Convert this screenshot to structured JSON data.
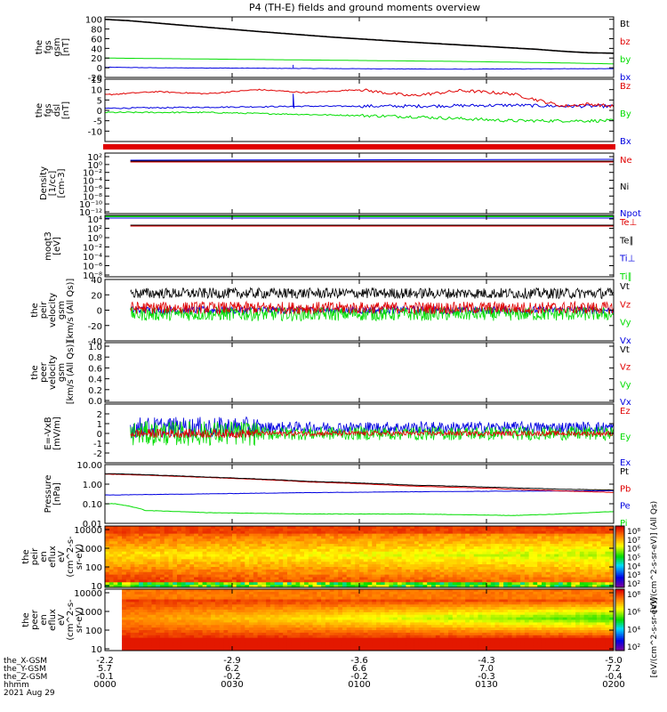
{
  "title": "P4 (TH-E) fields and ground moments overview",
  "colors": {
    "black": "#000000",
    "red": "#e00000",
    "green": "#00dd00",
    "blue": "#0000e0"
  },
  "chart_data": [
    {
      "id": "fgs_gsm",
      "type": "line",
      "ylabel": [
        "the",
        "fgs",
        "gsm",
        "[nT]"
      ],
      "ylim": [
        -20,
        105
      ],
      "y_ticks": [
        "100",
        "80",
        "60",
        "40",
        "20",
        "0",
        "-20"
      ],
      "y_tick_values": [
        100,
        80,
        60,
        40,
        20,
        0,
        -20
      ],
      "series": [
        {
          "name": "Bt",
          "color": "black",
          "x": [
            0,
            0.05,
            0.15,
            0.3,
            0.45,
            0.6,
            0.75,
            0.85,
            0.9,
            0.95,
            1.0
          ],
          "values": [
            100,
            97,
            88,
            75,
            63,
            53,
            44,
            38,
            34,
            31,
            30
          ]
        },
        {
          "name": "bz",
          "color": "red",
          "x": [
            0,
            0.05,
            0.15,
            0.3,
            0.45,
            0.6,
            0.75,
            0.85,
            0.9,
            0.95,
            1.0
          ],
          "values": [
            100,
            97,
            88,
            75,
            63,
            53,
            44,
            38,
            34,
            31,
            30
          ]
        },
        {
          "name": "by",
          "color": "green",
          "x": [
            0,
            0.1,
            0.3,
            0.5,
            0.7,
            0.9,
            1.0
          ],
          "values": [
            20,
            19,
            17,
            15,
            13,
            10,
            8
          ]
        },
        {
          "name": "bx",
          "color": "blue",
          "x": [
            0,
            0.1,
            0.3,
            0.5,
            0.7,
            0.9,
            1.0
          ],
          "values": [
            1,
            0,
            -1,
            -2,
            -3,
            -2,
            -2
          ]
        }
      ]
    },
    {
      "id": "fgs_dsl",
      "type": "line",
      "ylabel": [
        "the",
        "fgs",
        "dsl",
        "[nT]"
      ],
      "ylim": [
        -15,
        15
      ],
      "y_ticks": [
        "15",
        "10",
        "5",
        "0",
        "-5",
        "-10"
      ],
      "y_tick_values": [
        15,
        10,
        5,
        0,
        -5,
        -10
      ],
      "series": [
        {
          "name": "Bz",
          "color": "red",
          "x": [
            0,
            0.1,
            0.2,
            0.3,
            0.4,
            0.5,
            0.6,
            0.7,
            0.8,
            0.85,
            0.9,
            0.95,
            1.0
          ],
          "values": [
            7.5,
            9,
            8,
            10,
            8.5,
            10,
            7,
            9.5,
            8,
            5,
            2,
            3,
            2
          ]
        },
        {
          "name": "By",
          "color": "green",
          "x": [
            0,
            0.2,
            0.4,
            0.6,
            0.8,
            1.0
          ],
          "values": [
            -1,
            -1,
            -2,
            -3,
            -5,
            -5
          ]
        },
        {
          "name": "Bx",
          "color": "blue",
          "x": [
            0,
            0.2,
            0.4,
            0.6,
            0.8,
            0.9,
            1.0
          ],
          "values": [
            1,
            1.5,
            2,
            2,
            2.5,
            2,
            2
          ]
        }
      ]
    },
    {
      "id": "density",
      "type": "line",
      "ylabel": [
        "Density",
        "[1/cc]",
        "[cm-3]"
      ],
      "y_ticks": [
        "10²",
        "10⁰",
        "10⁻²",
        "10⁻⁴",
        "10⁻⁶",
        "10⁻⁸",
        "10⁻¹⁰",
        "10⁻¹²"
      ],
      "series": [
        {
          "name": "Ne",
          "color": "red"
        },
        {
          "name": "Ni",
          "color": "black"
        },
        {
          "name": "Npot",
          "color": "blue"
        }
      ]
    },
    {
      "id": "temperature",
      "type": "line",
      "ylabel": [
        "moqt3",
        "[eV]"
      ],
      "y_ticks": [
        "10⁴",
        "10²",
        "10⁰",
        "10⁻²",
        "10⁻⁴",
        "10⁻⁶",
        "10⁻⁸"
      ],
      "series": [
        {
          "name": "Te⊥",
          "color": "red"
        },
        {
          "name": "Te∥",
          "color": "black"
        },
        {
          "name": "Ti⊥",
          "color": "blue"
        },
        {
          "name": "Ti∥",
          "color": "green"
        }
      ]
    },
    {
      "id": "peir_velocity",
      "type": "line",
      "ylabel": [
        "the",
        "peir",
        "velocity",
        "gsm",
        "[km/s (All Qs)]"
      ],
      "ylim": [
        -40,
        40
      ],
      "y_ticks": [
        "40",
        "20",
        "0",
        "-20",
        "-40"
      ],
      "y_tick_values": [
        40,
        20,
        0,
        -20,
        -40
      ],
      "series": [
        {
          "name": "Vt",
          "color": "black",
          "mean": 22
        },
        {
          "name": "Vz",
          "color": "red",
          "mean": 3
        },
        {
          "name": "Vy",
          "color": "green",
          "mean": -5
        },
        {
          "name": "Vx",
          "color": "blue",
          "mean": 0
        }
      ]
    },
    {
      "id": "peer_velocity",
      "type": "line",
      "ylabel": [
        "the",
        "peer",
        "velocity",
        "gsm",
        "[km/s (All Qs)]"
      ],
      "y_ticks": [
        "1.0",
        "0.8",
        "0.6",
        "0.4",
        "0.2",
        "0.0"
      ],
      "series": [
        {
          "name": "Vt",
          "color": "black"
        },
        {
          "name": "Vz",
          "color": "red"
        },
        {
          "name": "Vy",
          "color": "green"
        },
        {
          "name": "Vx",
          "color": "blue"
        }
      ]
    },
    {
      "id": "efield",
      "type": "line",
      "ylabel": [
        "E=-VxB",
        "[mV/m]"
      ],
      "ylim": [
        -3,
        3
      ],
      "y_ticks": [
        "2",
        "1",
        "0",
        "-1",
        "-2"
      ],
      "y_tick_values": [
        2,
        1,
        0,
        -1,
        -2
      ],
      "series": [
        {
          "name": "Ez",
          "color": "red",
          "mean": 0
        },
        {
          "name": "Ey",
          "color": "green",
          "mean": 0
        },
        {
          "name": "Ex",
          "color": "blue",
          "mean": 0.6
        }
      ]
    },
    {
      "id": "pressure",
      "type": "line",
      "log_y": true,
      "ylabel": [
        "Pressure",
        "[nPa]"
      ],
      "ylim": [
        0.01,
        10
      ],
      "y_ticks": [
        "10.00",
        "1.00",
        "0.10",
        "0.01"
      ],
      "y_tick_values": [
        10,
        1,
        0.1,
        0.01
      ],
      "series": [
        {
          "name": "Pt",
          "color": "black",
          "x": [
            0.02,
            0.2,
            0.4,
            0.6,
            0.8,
            0.9,
            1.0
          ],
          "values": [
            3.4,
            2.3,
            1.4,
            0.9,
            0.65,
            0.55,
            0.5
          ]
        },
        {
          "name": "Pb",
          "color": "red",
          "x": [
            0.02,
            0.2,
            0.4,
            0.6,
            0.8,
            0.9,
            1.0
          ],
          "values": [
            3.2,
            2.2,
            1.3,
            0.8,
            0.55,
            0.45,
            0.38
          ]
        },
        {
          "name": "Pe",
          "color": "blue",
          "x": [
            0.02,
            0.2,
            0.4,
            0.6,
            0.8,
            1.0
          ],
          "values": [
            0.28,
            0.32,
            0.37,
            0.41,
            0.44,
            0.46
          ]
        },
        {
          "name": "Pi",
          "color": "green",
          "x": [
            0.02,
            0.08,
            0.2,
            0.4,
            0.6,
            0.8,
            0.9,
            1.0
          ],
          "values": [
            0.1,
            0.045,
            0.035,
            0.03,
            0.03,
            0.025,
            0.03,
            0.04
          ]
        }
      ]
    },
    {
      "id": "peir_spectrogram",
      "type": "heatmap",
      "ylabel": [
        "the",
        "peir",
        "en",
        "eflux",
        "eV",
        "(cm^2-s-",
        "sr-eV)"
      ],
      "y_ticks": [
        "10000",
        "1000",
        "100",
        "10"
      ],
      "colorbar_ticks": [
        "10⁸",
        "10⁷",
        "10⁶",
        "10⁵",
        "10⁴",
        "10³",
        "10²"
      ],
      "colorbar_label": "[eV/(cm^2-s-sr-eV)] (All Qs)"
    },
    {
      "id": "peer_spectrogram",
      "type": "heatmap",
      "ylabel": [
        "the",
        "peer",
        "en",
        "eflux",
        "eV",
        "(cm^2-s-",
        "sr-eV)"
      ],
      "y_ticks": [
        "10000",
        "1000",
        "100",
        "10"
      ],
      "colorbar_ticks": [
        "10⁸",
        "10⁶",
        "10⁴",
        "10²"
      ],
      "colorbar_label": "[eV/(cm^2-s-sr-eV)]"
    }
  ],
  "x_axis": {
    "row_labels": [
      "the_X-GSM",
      "the_Y-GSM",
      "the_Z-GSM",
      "hhmm",
      "2021 Aug 29"
    ],
    "columns": [
      [
        "-2.2",
        "5.7",
        "-0.1",
        "0000"
      ],
      [
        "-2.9",
        "6.2",
        "-0.2",
        "0030"
      ],
      [
        "-3.6",
        "6.6",
        "-0.2",
        "0100"
      ],
      [
        "-4.3",
        "7.0",
        "-0.3",
        "0130"
      ],
      [
        "-5.0",
        "7.2",
        "-0.4",
        "0200"
      ]
    ]
  }
}
